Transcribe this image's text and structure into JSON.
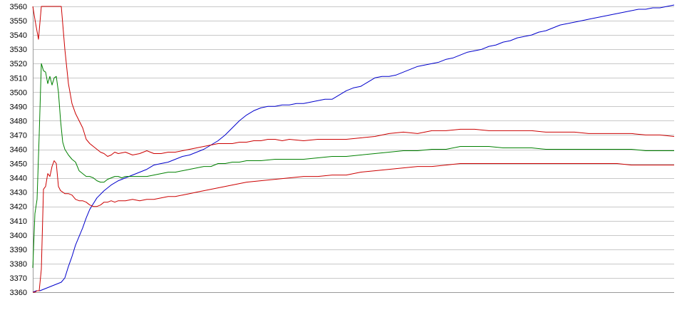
{
  "chart_data": {
    "type": "line",
    "title": "",
    "xlabel": "",
    "ylabel": "",
    "ylim": [
      3360,
      3560
    ],
    "xlim": [
      0,
      900
    ],
    "yticks": [
      3360,
      3370,
      3380,
      3390,
      3400,
      3410,
      3420,
      3430,
      3440,
      3450,
      3460,
      3470,
      3480,
      3490,
      3500,
      3510,
      3520,
      3530,
      3540,
      3550,
      3560
    ],
    "grid": true,
    "legend": "none",
    "series": [
      {
        "color": "#0000cc",
        "x": [
          0,
          5,
          10,
          15,
          20,
          25,
          30,
          35,
          40,
          45,
          50,
          55,
          60,
          65,
          70,
          75,
          80,
          90,
          100,
          110,
          120,
          130,
          140,
          150,
          160,
          170,
          180,
          190,
          200,
          210,
          220,
          230,
          240,
          250,
          260,
          270,
          280,
          290,
          300,
          310,
          320,
          330,
          340,
          350,
          360,
          370,
          380,
          390,
          400,
          410,
          420,
          430,
          440,
          450,
          460,
          470,
          480,
          490,
          500,
          510,
          520,
          530,
          540,
          550,
          560,
          570,
          580,
          590,
          600,
          610,
          620,
          630,
          640,
          650,
          660,
          670,
          680,
          690,
          700,
          710,
          720,
          730,
          740,
          750,
          760,
          770,
          780,
          790,
          800,
          810,
          820,
          830,
          840,
          850,
          860,
          870,
          880,
          890,
          900
        ],
        "y": [
          3360,
          3361,
          3361,
          3362,
          3363,
          3364,
          3365,
          3366,
          3367,
          3370,
          3378,
          3385,
          3393,
          3399,
          3405,
          3412,
          3418,
          3426,
          3431,
          3435,
          3438,
          3440,
          3442,
          3444,
          3446,
          3449,
          3450,
          3451,
          3453,
          3455,
          3456,
          3458,
          3460,
          3463,
          3466,
          3470,
          3475,
          3480,
          3484,
          3487,
          3489,
          3490,
          3490,
          3491,
          3491,
          3492,
          3492,
          3493,
          3494,
          3495,
          3495,
          3498,
          3501,
          3503,
          3504,
          3507,
          3510,
          3511,
          3511,
          3512,
          3514,
          3516,
          3518,
          3519,
          3520,
          3521,
          3523,
          3524,
          3526,
          3528,
          3529,
          3530,
          3532,
          3533,
          3535,
          3536,
          3538,
          3539,
          3540,
          3542,
          3543,
          3545,
          3547,
          3548,
          3549,
          3550,
          3551,
          3552,
          3553,
          3554,
          3555,
          3556,
          3557,
          3558,
          3558,
          3559,
          3559,
          3560,
          3561
        ]
      },
      {
        "color": "#cc0000",
        "x": [
          0,
          4,
          8,
          12,
          16,
          20,
          24,
          28,
          32,
          36,
          40,
          45,
          50,
          55,
          60,
          65,
          70,
          75,
          80,
          85,
          90,
          95,
          100,
          105,
          110,
          115,
          120,
          130,
          140,
          150,
          160,
          170,
          180,
          190,
          200,
          210,
          220,
          230,
          240,
          250,
          260,
          270,
          280,
          290,
          300,
          310,
          320,
          330,
          340,
          350,
          360,
          380,
          400,
          420,
          440,
          460,
          480,
          500,
          520,
          540,
          560,
          580,
          600,
          620,
          640,
          660,
          680,
          700,
          720,
          740,
          760,
          780,
          800,
          820,
          840,
          860,
          880,
          900
        ],
        "y": [
          3560,
          3548,
          3537,
          3560,
          3560,
          3560,
          3560,
          3560,
          3560,
          3560,
          3560,
          3530,
          3506,
          3492,
          3485,
          3480,
          3475,
          3467,
          3464,
          3462,
          3460,
          3458,
          3457,
          3455,
          3456,
          3458,
          3457,
          3458,
          3456,
          3457,
          3459,
          3457,
          3457,
          3458,
          3458,
          3459,
          3460,
          3461,
          3462,
          3463,
          3464,
          3464,
          3464,
          3465,
          3465,
          3466,
          3466,
          3467,
          3467,
          3466,
          3467,
          3466,
          3467,
          3467,
          3467,
          3468,
          3469,
          3471,
          3472,
          3471,
          3473,
          3473,
          3474,
          3474,
          3473,
          3473,
          3473,
          3473,
          3472,
          3472,
          3472,
          3471,
          3471,
          3471,
          3471,
          3470,
          3470,
          3469
        ]
      },
      {
        "color": "#008000",
        "x": [
          0,
          3,
          6,
          9,
          12,
          15,
          18,
          21,
          24,
          27,
          30,
          33,
          36,
          39,
          42,
          45,
          50,
          55,
          60,
          65,
          70,
          75,
          80,
          85,
          90,
          95,
          100,
          105,
          110,
          115,
          120,
          125,
          130,
          140,
          150,
          160,
          170,
          180,
          190,
          200,
          210,
          220,
          230,
          240,
          250,
          260,
          270,
          280,
          290,
          300,
          310,
          320,
          340,
          360,
          380,
          400,
          420,
          440,
          460,
          480,
          500,
          520,
          540,
          560,
          580,
          600,
          620,
          640,
          660,
          680,
          700,
          720,
          740,
          760,
          780,
          800,
          820,
          840,
          860,
          880,
          900
        ],
        "y": [
          3377,
          3415,
          3425,
          3470,
          3520,
          3515,
          3514,
          3506,
          3511,
          3505,
          3510,
          3511,
          3500,
          3480,
          3465,
          3460,
          3456,
          3453,
          3451,
          3445,
          3443,
          3441,
          3441,
          3440,
          3438,
          3437,
          3437,
          3439,
          3440,
          3441,
          3441,
          3440,
          3441,
          3441,
          3441,
          3441,
          3442,
          3443,
          3444,
          3444,
          3445,
          3446,
          3447,
          3448,
          3448,
          3450,
          3450,
          3451,
          3451,
          3452,
          3452,
          3452,
          3453,
          3453,
          3453,
          3454,
          3455,
          3455,
          3456,
          3457,
          3458,
          3459,
          3459,
          3460,
          3460,
          3462,
          3462,
          3462,
          3461,
          3461,
          3461,
          3460,
          3460,
          3460,
          3460,
          3460,
          3460,
          3460,
          3459,
          3459,
          3459
        ]
      },
      {
        "color": "#cc0000",
        "x": [
          0,
          3,
          6,
          9,
          12,
          15,
          18,
          21,
          24,
          27,
          30,
          33,
          36,
          39,
          42,
          45,
          50,
          55,
          60,
          65,
          70,
          75,
          80,
          85,
          90,
          95,
          100,
          105,
          110,
          115,
          120,
          130,
          140,
          150,
          160,
          170,
          180,
          190,
          200,
          210,
          220,
          230,
          240,
          250,
          260,
          270,
          280,
          290,
          300,
          320,
          340,
          360,
          380,
          400,
          420,
          440,
          460,
          480,
          500,
          520,
          540,
          560,
          580,
          600,
          620,
          640,
          660,
          680,
          700,
          720,
          740,
          760,
          780,
          800,
          820,
          840,
          860,
          880,
          900
        ],
        "y": [
          3360,
          3360,
          3361,
          3361,
          3376,
          3432,
          3434,
          3443,
          3441,
          3448,
          3452,
          3450,
          3434,
          3431,
          3430,
          3429,
          3429,
          3428,
          3425,
          3424,
          3424,
          3423,
          3421,
          3420,
          3420,
          3421,
          3423,
          3423,
          3424,
          3423,
          3424,
          3424,
          3425,
          3424,
          3425,
          3425,
          3426,
          3427,
          3427,
          3428,
          3429,
          3430,
          3431,
          3432,
          3433,
          3434,
          3435,
          3436,
          3437,
          3438,
          3439,
          3440,
          3441,
          3441,
          3442,
          3442,
          3444,
          3445,
          3446,
          3447,
          3448,
          3448,
          3449,
          3450,
          3450,
          3450,
          3450,
          3450,
          3450,
          3450,
          3450,
          3450,
          3450,
          3450,
          3450,
          3449,
          3449,
          3449,
          3449
        ]
      }
    ]
  }
}
